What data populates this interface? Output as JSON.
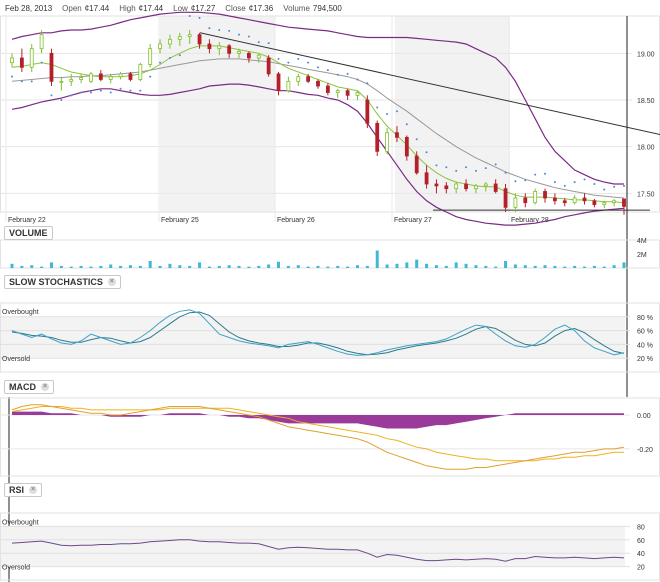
{
  "header": {
    "date": "Feb 28, 2013",
    "open_label": "Open",
    "open_value": "¢17.44",
    "high_label": "High",
    "high_value": "¢17.44",
    "low_label": "Low",
    "low_value": "¢17.27",
    "close_label": "Close",
    "close_value": "¢17.36",
    "volume_label": "Volume",
    "volume_value": "794,500"
  },
  "panels": {
    "volume": "VOLUME",
    "stochastics": "SLOW STOCHASTICS",
    "macd": "MACD",
    "rsi": "RSI"
  },
  "colors": {
    "up": "#7fbf2a",
    "down": "#b3202a",
    "sma": "#8ac43c",
    "sma_long": "#999999",
    "bollinger": "#7b2a86",
    "volume": "#3fb8d4",
    "stoch_k": "#3fa0c8",
    "stoch_d": "#2a7a8a",
    "macd_line": "#a040a0",
    "macd_signal": "#f0b020",
    "macd_hist": "#9a3a9a",
    "rsi": "#6a4a8a",
    "sar": "#4a8ad4",
    "trendline": "#333333"
  },
  "chart_data": [
    {
      "type": "line",
      "name": "price",
      "x_tick_labels": [
        "February 22",
        "February 25",
        "February 26",
        "February 27",
        "February 28"
      ],
      "y_tick_labels": [
        "19.00",
        "18.50",
        "18.00",
        "17.50"
      ],
      "ylim": [
        17.3,
        19.4
      ],
      "candles": [
        [
          18.9,
          19.0,
          18.85,
          18.95
        ],
        [
          18.95,
          19.05,
          18.8,
          18.85
        ],
        [
          18.85,
          19.1,
          18.8,
          19.05
        ],
        [
          19.05,
          19.25,
          19.0,
          19.2
        ],
        [
          19.0,
          19.05,
          18.65,
          18.7
        ],
        [
          18.7,
          18.75,
          18.6,
          18.7
        ],
        [
          18.7,
          18.78,
          18.65,
          18.72
        ],
        [
          18.72,
          18.78,
          18.68,
          18.74
        ],
        [
          18.7,
          18.8,
          18.68,
          18.78
        ],
        [
          18.78,
          18.82,
          18.7,
          18.72
        ],
        [
          18.72,
          18.78,
          18.68,
          18.75
        ],
        [
          18.75,
          18.8,
          18.72,
          18.78
        ],
        [
          18.78,
          18.8,
          18.7,
          18.72
        ],
        [
          18.72,
          18.9,
          18.7,
          18.88
        ],
        [
          18.88,
          19.1,
          18.85,
          19.05
        ],
        [
          19.05,
          19.15,
          19.0,
          19.1
        ],
        [
          19.1,
          19.2,
          19.05,
          19.15
        ],
        [
          19.15,
          19.22,
          19.08,
          19.18
        ],
        [
          19.18,
          19.25,
          19.1,
          19.2
        ],
        [
          19.2,
          19.22,
          19.05,
          19.1
        ],
        [
          19.1,
          19.15,
          19.0,
          19.05
        ],
        [
          19.05,
          19.12,
          18.98,
          19.08
        ],
        [
          19.08,
          19.1,
          18.95,
          19.0
        ],
        [
          19.0,
          19.05,
          18.95,
          19.02
        ],
        [
          19.0,
          19.02,
          18.9,
          18.95
        ],
        [
          18.95,
          19.0,
          18.9,
          18.98
        ],
        [
          18.95,
          18.98,
          18.75,
          18.78
        ],
        [
          18.78,
          18.8,
          18.55,
          18.6
        ],
        [
          18.6,
          18.75,
          18.58,
          18.7
        ],
        [
          18.7,
          18.78,
          18.65,
          18.75
        ],
        [
          18.75,
          18.78,
          18.68,
          18.7
        ],
        [
          18.7,
          18.72,
          18.62,
          18.65
        ],
        [
          18.65,
          18.68,
          18.55,
          18.58
        ],
        [
          18.58,
          18.62,
          18.52,
          18.6
        ],
        [
          18.6,
          18.62,
          18.5,
          18.55
        ],
        [
          18.55,
          18.6,
          18.5,
          18.58
        ],
        [
          18.5,
          18.55,
          18.2,
          18.25
        ],
        [
          18.25,
          18.28,
          17.9,
          17.95
        ],
        [
          17.95,
          18.2,
          17.92,
          18.15
        ],
        [
          18.15,
          18.22,
          18.05,
          18.1
        ],
        [
          18.1,
          18.12,
          17.85,
          17.9
        ],
        [
          17.9,
          17.95,
          17.7,
          17.72
        ],
        [
          17.72,
          17.8,
          17.55,
          17.6
        ],
        [
          17.6,
          17.65,
          17.5,
          17.58
        ],
        [
          17.58,
          17.62,
          17.5,
          17.55
        ],
        [
          17.55,
          17.62,
          17.5,
          17.6
        ],
        [
          17.6,
          17.65,
          17.52,
          17.55
        ],
        [
          17.55,
          17.6,
          17.5,
          17.58
        ],
        [
          17.58,
          17.62,
          17.52,
          17.6
        ],
        [
          17.6,
          17.65,
          17.5,
          17.52
        ],
        [
          17.55,
          17.6,
          17.3,
          17.35
        ],
        [
          17.35,
          17.5,
          17.3,
          17.45
        ],
        [
          17.45,
          17.5,
          17.35,
          17.4
        ],
        [
          17.4,
          17.55,
          17.38,
          17.52
        ],
        [
          17.52,
          17.55,
          17.4,
          17.45
        ],
        [
          17.45,
          17.5,
          17.38,
          17.42
        ],
        [
          17.42,
          17.45,
          17.36,
          17.4
        ],
        [
          17.4,
          17.48,
          17.38,
          17.45
        ],
        [
          17.45,
          17.5,
          17.38,
          17.42
        ],
        [
          17.42,
          17.44,
          17.35,
          17.38
        ],
        [
          17.38,
          17.42,
          17.34,
          17.4
        ],
        [
          17.4,
          17.44,
          17.36,
          17.42
        ],
        [
          17.44,
          17.44,
          17.27,
          17.36
        ]
      ],
      "bollinger_upper": [
        19.15,
        19.18,
        19.2,
        19.22,
        19.22,
        19.24,
        19.25,
        19.25,
        19.26,
        19.28,
        19.3,
        19.33,
        19.36,
        19.38,
        19.4,
        19.42,
        19.43,
        19.44,
        19.44,
        19.44,
        19.43,
        19.42,
        19.4,
        19.38,
        19.36,
        19.34,
        19.32,
        19.3,
        19.28,
        19.27,
        19.26,
        19.25,
        19.24,
        19.22,
        19.2,
        19.18,
        19.17,
        19.17,
        19.17,
        19.17,
        19.17,
        19.16,
        19.15,
        19.14,
        19.13,
        19.12,
        19.1,
        19.05,
        19.0,
        18.95,
        18.85,
        18.7,
        18.5,
        18.3,
        18.1,
        17.95,
        17.85,
        17.75,
        17.7,
        17.65,
        17.62,
        17.6,
        17.6
      ],
      "bollinger_lower": [
        18.4,
        18.42,
        18.45,
        18.48,
        18.5,
        18.52,
        18.55,
        18.58,
        18.6,
        18.62,
        18.62,
        18.6,
        18.58,
        18.56,
        18.55,
        18.55,
        18.56,
        18.58,
        18.6,
        18.62,
        18.65,
        18.66,
        18.67,
        18.67,
        18.66,
        18.64,
        18.62,
        18.6,
        18.6,
        18.58,
        18.56,
        18.55,
        18.52,
        18.5,
        18.45,
        18.38,
        18.25,
        18.1,
        17.95,
        17.8,
        17.65,
        17.52,
        17.42,
        17.35,
        17.3,
        17.25,
        17.22,
        17.2,
        17.18,
        17.17,
        17.16,
        17.16,
        17.17,
        17.18,
        17.2,
        17.22,
        17.25,
        17.27,
        17.29,
        17.31,
        17.32,
        17.33,
        17.34
      ],
      "sma_short": [
        18.85,
        18.86,
        18.88,
        18.9,
        18.88,
        18.84,
        18.8,
        18.78,
        18.76,
        18.75,
        18.75,
        18.75,
        18.76,
        18.78,
        18.82,
        18.88,
        18.95,
        19.0,
        19.05,
        19.08,
        19.08,
        19.08,
        19.06,
        19.04,
        19.02,
        19.0,
        18.96,
        18.9,
        18.84,
        18.8,
        18.76,
        18.72,
        18.68,
        18.64,
        18.62,
        18.6,
        18.5,
        18.35,
        18.22,
        18.12,
        18.02,
        17.9,
        17.8,
        17.72,
        17.66,
        17.62,
        17.6,
        17.58,
        17.57,
        17.57,
        17.52,
        17.48,
        17.46,
        17.46,
        17.46,
        17.45,
        17.44,
        17.43,
        17.43,
        17.42,
        17.41,
        17.41,
        17.4
      ],
      "sma_long": [
        18.7,
        18.71,
        18.72,
        18.73,
        18.74,
        18.74,
        18.75,
        18.75,
        18.76,
        18.76,
        18.77,
        18.78,
        18.79,
        18.8,
        18.82,
        18.84,
        18.86,
        18.88,
        18.9,
        18.92,
        18.93,
        18.94,
        18.94,
        18.94,
        18.93,
        18.92,
        18.91,
        18.89,
        18.87,
        18.85,
        18.83,
        18.81,
        18.79,
        18.77,
        18.75,
        18.72,
        18.67,
        18.6,
        18.52,
        18.45,
        18.38,
        18.3,
        18.22,
        18.14,
        18.07,
        18.0,
        17.94,
        17.88,
        17.83,
        17.78,
        17.73,
        17.69,
        17.65,
        17.62,
        17.59,
        17.56,
        17.54,
        17.52,
        17.5,
        17.48,
        17.47,
        17.46,
        17.45
      ],
      "trendline": [
        [
          19.22,
          0.0
        ],
        [
          18.13,
          1.0
        ]
      ]
    },
    {
      "type": "bar",
      "name": "volume",
      "y_tick_labels": [
        "4M",
        "2M"
      ],
      "values": [
        0.6,
        0.3,
        0.4,
        0.2,
        0.8,
        0.3,
        0.2,
        0.3,
        0.2,
        0.3,
        0.5,
        0.3,
        0.4,
        0.3,
        1.0,
        0.3,
        0.6,
        0.4,
        0.3,
        0.8,
        0.2,
        0.3,
        0.4,
        0.3,
        0.2,
        0.3,
        0.5,
        0.9,
        0.3,
        0.4,
        0.2,
        0.3,
        0.2,
        0.3,
        0.2,
        0.4,
        0.3,
        2.5,
        0.5,
        0.6,
        0.8,
        1.2,
        0.6,
        0.4,
        0.3,
        0.8,
        0.6,
        0.4,
        0.3,
        0.2,
        1.0,
        0.5,
        0.4,
        0.3,
        0.4,
        0.3,
        0.2,
        0.3,
        0.2,
        0.3,
        0.2,
        0.4,
        0.8
      ]
    },
    {
      "type": "line",
      "name": "stochastics",
      "y_tick_labels": [
        "80 %",
        "60 %",
        "40 %",
        "20 %"
      ],
      "level_labels": [
        "Overbought",
        "Oversold"
      ],
      "ylim": [
        0,
        100
      ],
      "k": [
        60,
        55,
        50,
        55,
        48,
        42,
        40,
        45,
        55,
        50,
        45,
        40,
        42,
        50,
        60,
        72,
        82,
        88,
        90,
        85,
        70,
        55,
        50,
        45,
        42,
        40,
        38,
        35,
        40,
        42,
        44,
        40,
        35,
        30,
        26,
        24,
        25,
        28,
        32,
        35,
        38,
        40,
        42,
        44,
        48,
        55,
        62,
        68,
        66,
        55,
        45,
        38,
        36,
        40,
        50,
        62,
        68,
        60,
        45,
        35,
        30,
        25,
        28
      ],
      "d": [
        58,
        56,
        53,
        52,
        50,
        46,
        43,
        43,
        47,
        50,
        49,
        45,
        42,
        44,
        50,
        60,
        70,
        80,
        86,
        87,
        82,
        70,
        58,
        50,
        45,
        42,
        40,
        37,
        37,
        39,
        42,
        42,
        39,
        35,
        30,
        27,
        25,
        26,
        28,
        32,
        35,
        38,
        40,
        42,
        45,
        49,
        55,
        62,
        66,
        63,
        55,
        46,
        40,
        38,
        42,
        52,
        60,
        63,
        57,
        47,
        38,
        30,
        27
      ]
    },
    {
      "type": "line",
      "name": "macd",
      "y_tick_labels": [
        "0.00",
        "-0.20"
      ],
      "ylim": [
        -0.36,
        0.1
      ],
      "macd": [
        0.03,
        0.05,
        0.06,
        0.06,
        0.05,
        0.04,
        0.03,
        0.02,
        0.01,
        0.01,
        0.0,
        0.0,
        0.01,
        0.02,
        0.03,
        0.04,
        0.05,
        0.05,
        0.05,
        0.05,
        0.04,
        0.03,
        0.02,
        0.01,
        0.0,
        -0.01,
        -0.03,
        -0.05,
        -0.07,
        -0.08,
        -0.09,
        -0.1,
        -0.11,
        -0.12,
        -0.13,
        -0.14,
        -0.16,
        -0.19,
        -0.22,
        -0.24,
        -0.26,
        -0.28,
        -0.3,
        -0.31,
        -0.32,
        -0.32,
        -0.32,
        -0.31,
        -0.31,
        -0.3,
        -0.29,
        -0.28,
        -0.27,
        -0.26,
        -0.25,
        -0.24,
        -0.23,
        -0.22,
        -0.22,
        -0.21,
        -0.2,
        -0.2,
        -0.19
      ],
      "signal": [
        0.02,
        0.03,
        0.04,
        0.05,
        0.05,
        0.05,
        0.04,
        0.04,
        0.03,
        0.03,
        0.03,
        0.03,
        0.03,
        0.03,
        0.03,
        0.03,
        0.04,
        0.04,
        0.04,
        0.04,
        0.04,
        0.04,
        0.04,
        0.03,
        0.02,
        0.01,
        0.0,
        -0.01,
        -0.02,
        -0.04,
        -0.05,
        -0.06,
        -0.07,
        -0.08,
        -0.09,
        -0.1,
        -0.11,
        -0.12,
        -0.14,
        -0.15,
        -0.17,
        -0.19,
        -0.2,
        -0.22,
        -0.23,
        -0.24,
        -0.25,
        -0.26,
        -0.26,
        -0.27,
        -0.27,
        -0.27,
        -0.27,
        -0.27,
        -0.26,
        -0.26,
        -0.25,
        -0.25,
        -0.24,
        -0.24,
        -0.23,
        -0.22,
        -0.22
      ],
      "histogram": [
        0.02,
        0.02,
        0.02,
        0.02,
        0.01,
        0.01,
        0.01,
        0.0,
        0.0,
        0.0,
        -0.01,
        -0.01,
        -0.01,
        -0.01,
        0.0,
        0.0,
        0.01,
        0.01,
        0.01,
        0.01,
        0.0,
        0.0,
        -0.01,
        -0.01,
        -0.02,
        -0.02,
        -0.03,
        -0.04,
        -0.05,
        -0.05,
        -0.05,
        -0.05,
        -0.05,
        -0.05,
        -0.05,
        -0.05,
        -0.06,
        -0.07,
        -0.08,
        -0.08,
        -0.08,
        -0.08,
        -0.07,
        -0.06,
        -0.06,
        -0.05,
        -0.04,
        -0.03,
        -0.02,
        -0.01,
        0.0,
        0.01,
        0.01,
        0.01,
        0.01,
        0.01,
        0.01,
        0.01,
        0.01,
        0.01,
        0.01,
        0.01,
        0.01
      ]
    },
    {
      "type": "line",
      "name": "rsi",
      "y_tick_labels": [
        "80",
        "60",
        "40",
        "20"
      ],
      "level_labels": [
        "Overbought",
        "Oversold"
      ],
      "ylim": [
        0,
        100
      ],
      "values": [
        55,
        56,
        57,
        58,
        55,
        52,
        51,
        52,
        52,
        53,
        53,
        54,
        54,
        55,
        57,
        58,
        59,
        60,
        60,
        58,
        57,
        57,
        56,
        55,
        55,
        54,
        50,
        46,
        48,
        49,
        48,
        47,
        46,
        46,
        45,
        45,
        40,
        34,
        38,
        37,
        34,
        31,
        29,
        29,
        30,
        31,
        30,
        31,
        32,
        31,
        28,
        32,
        32,
        35,
        34,
        33,
        33,
        34,
        33,
        32,
        33,
        34,
        33
      ]
    }
  ]
}
